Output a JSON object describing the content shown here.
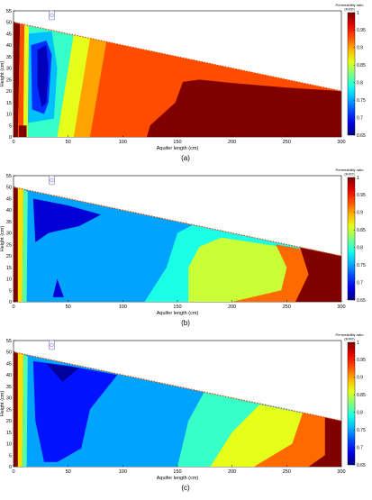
{
  "chart_data": [
    {
      "type": "heatmap",
      "panel_label": "(a)",
      "xlabel": "Aquifer length (cm)",
      "ylabel": "Height (cm)",
      "xlim": [
        0,
        300
      ],
      "ylim": [
        0,
        55
      ],
      "xticks": [
        "0",
        "50",
        "100",
        "150",
        "200",
        "250",
        "300"
      ],
      "yticks": [
        "0",
        "5",
        "10",
        "15",
        "20",
        "25",
        "30",
        "35",
        "40",
        "45",
        "50",
        "55"
      ],
      "colorbar": {
        "title_line1": "Permeability ratio",
        "title_line2": "(K/K0)",
        "min": 0.65,
        "max": 1,
        "ticks": [
          "1",
          "0.95",
          "0.9",
          "0.85",
          "0.8",
          "0.75",
          "0.7",
          "0.65"
        ]
      },
      "domain_top": [
        [
          0,
          50
        ],
        [
          300,
          20
        ]
      ],
      "regions": [
        {
          "value": 0.8,
          "points": [
            [
              0,
              0
            ],
            [
              300,
              0
            ],
            [
              300,
              20
            ],
            [
              0,
              50
            ]
          ]
        },
        {
          "value": 0.86,
          "points": [
            [
              40,
              0
            ],
            [
              300,
              0
            ],
            [
              300,
              20
            ],
            [
              55,
              44.5
            ]
          ]
        },
        {
          "value": 0.9,
          "points": [
            [
              55,
              0
            ],
            [
              300,
              0
            ],
            [
              300,
              20
            ],
            [
              70,
              43
            ]
          ]
        },
        {
          "value": 0.93,
          "points": [
            [
              70,
              0
            ],
            [
              300,
              0
            ],
            [
              300,
              20
            ],
            [
              85,
              41.5
            ]
          ]
        },
        {
          "value": 1.0,
          "points": [
            [
              122,
              0
            ],
            [
              300,
              0
            ],
            [
              300,
              20
            ],
            [
              250,
              21.5
            ],
            [
              200,
              23.5
            ],
            [
              170,
              25
            ],
            [
              155,
              24
            ],
            [
              148,
              15
            ],
            [
              125,
              5
            ]
          ]
        },
        {
          "value": 0.76,
          "points": [
            [
              12,
              45
            ],
            [
              35,
              46
            ],
            [
              40,
              30
            ],
            [
              37,
              8
            ],
            [
              12,
              6
            ]
          ]
        },
        {
          "value": 0.71,
          "points": [
            [
              16,
              40
            ],
            [
              30,
              42
            ],
            [
              35,
              36
            ],
            [
              32,
              15
            ],
            [
              28,
              10
            ],
            [
              17,
              12
            ]
          ]
        },
        {
          "value": 0.67,
          "points": [
            [
              22,
              38
            ],
            [
              30,
              40
            ],
            [
              32,
              30
            ],
            [
              30,
              15
            ],
            [
              26,
              13
            ],
            [
              22,
              22
            ]
          ]
        },
        {
          "value": 1.0,
          "points": [
            [
              0,
              0
            ],
            [
              4,
              0
            ],
            [
              6,
              50
            ],
            [
              0,
              50
            ]
          ]
        },
        {
          "value": 0.93,
          "points": [
            [
              4,
              0
            ],
            [
              9,
              0
            ],
            [
              10,
              49
            ],
            [
              6,
              50
            ]
          ]
        },
        {
          "value": 0.86,
          "points": [
            [
              9,
              0
            ],
            [
              13,
              0
            ],
            [
              14,
              48
            ],
            [
              10,
              49
            ]
          ]
        },
        {
          "value": 1.0,
          "points": [
            [
              5,
              5
            ],
            [
              12,
              5
            ],
            [
              12,
              0
            ],
            [
              5,
              0
            ]
          ]
        }
      ]
    },
    {
      "type": "heatmap",
      "panel_label": "(b)",
      "xlabel": "Aquifer length (cm)",
      "ylabel": "Height (cm)",
      "xlim": [
        0,
        300
      ],
      "ylim": [
        0,
        55
      ],
      "xticks": [
        "0",
        "50",
        "100",
        "150",
        "200",
        "250",
        "300"
      ],
      "yticks": [
        "0",
        "5",
        "10",
        "15",
        "20",
        "25",
        "30",
        "35",
        "40",
        "45",
        "50",
        "55"
      ],
      "colorbar": {
        "title_line1": "Permeability ratio",
        "title_line2": "(K/K0)",
        "min": 0.65,
        "max": 1,
        "ticks": [
          "1",
          "0.95",
          "0.9",
          "0.85",
          "0.8",
          "0.75",
          "0.7",
          "0.65"
        ]
      },
      "domain_top": [
        [
          0,
          50
        ],
        [
          300,
          20
        ]
      ],
      "regions": [
        {
          "value": 0.75,
          "points": [
            [
              0,
              0
            ],
            [
              300,
              0
            ],
            [
              300,
              20
            ],
            [
              0,
              50
            ]
          ]
        },
        {
          "value": 0.79,
          "points": [
            [
              120,
              0
            ],
            [
              300,
              0
            ],
            [
              300,
              20
            ],
            [
              170,
              35
            ],
            [
              150,
              30
            ],
            [
              140,
              15
            ]
          ]
        },
        {
          "value": 0.85,
          "points": [
            [
              160,
              0
            ],
            [
              300,
              0
            ],
            [
              300,
              20
            ],
            [
              190,
              28
            ],
            [
              170,
              24
            ],
            [
              160,
              15
            ]
          ]
        },
        {
          "value": 0.92,
          "points": [
            [
              200,
              0
            ],
            [
              300,
              0
            ],
            [
              300,
              20
            ],
            [
              240,
              25
            ],
            [
              250,
              15
            ],
            [
              245,
              5
            ]
          ]
        },
        {
          "value": 1.0,
          "points": [
            [
              258,
              0
            ],
            [
              300,
              0
            ],
            [
              300,
              20
            ],
            [
              262,
              24
            ],
            [
              270,
              12
            ]
          ]
        },
        {
          "value": 0.68,
          "points": [
            [
              18,
              45
            ],
            [
              50,
              42
            ],
            [
              80,
              38
            ],
            [
              60,
              33
            ],
            [
              32,
              30
            ],
            [
              20,
              26
            ]
          ]
        },
        {
          "value": 0.68,
          "points": [
            [
              36,
              2
            ],
            [
              46,
              2
            ],
            [
              40,
              10
            ]
          ]
        },
        {
          "value": 1.0,
          "points": [
            [
              0,
              0
            ],
            [
              4,
              0
            ],
            [
              4,
              50
            ],
            [
              0,
              50
            ]
          ]
        },
        {
          "value": 0.88,
          "points": [
            [
              4,
              0
            ],
            [
              8,
              0
            ],
            [
              9,
              49
            ],
            [
              4,
              50
            ]
          ]
        },
        {
          "value": 0.81,
          "points": [
            [
              8,
              0
            ],
            [
              12,
              0
            ],
            [
              13,
              48
            ],
            [
              9,
              49
            ]
          ]
        }
      ]
    },
    {
      "type": "heatmap",
      "panel_label": "(c)",
      "xlabel": "Aquifer length (cm)",
      "ylabel": "Height (cm)",
      "xlim": [
        0,
        300
      ],
      "ylim": [
        0,
        55
      ],
      "xticks": [
        "0",
        "50",
        "100",
        "150",
        "200",
        "250",
        "300"
      ],
      "yticks": [
        "0",
        "5",
        "10",
        "15",
        "20",
        "25",
        "30",
        "35",
        "40",
        "45",
        "50",
        "55"
      ],
      "colorbar": {
        "title_line1": "Permeability ratio",
        "title_line2": "(K/K0)",
        "min": 0.65,
        "max": 1,
        "ticks": [
          "1",
          "0.95",
          "0.9",
          "0.85",
          "0.8",
          "0.75",
          "0.7",
          "0.65"
        ]
      },
      "domain_top": [
        [
          0,
          50
        ],
        [
          300,
          20
        ]
      ],
      "regions": [
        {
          "value": 0.75,
          "points": [
            [
              0,
              0
            ],
            [
              300,
              0
            ],
            [
              300,
              20
            ],
            [
              0,
              50
            ]
          ]
        },
        {
          "value": 0.8,
          "points": [
            [
              150,
              0
            ],
            [
              300,
              0
            ],
            [
              300,
              20
            ],
            [
              175,
              33
            ],
            [
              160,
              20
            ]
          ]
        },
        {
          "value": 0.86,
          "points": [
            [
              180,
              0
            ],
            [
              300,
              0
            ],
            [
              300,
              20
            ],
            [
              225,
              27
            ],
            [
              200,
              15
            ]
          ]
        },
        {
          "value": 0.92,
          "points": [
            [
              220,
              0
            ],
            [
              300,
              0
            ],
            [
              300,
              20
            ],
            [
              265,
              24
            ],
            [
              255,
              10
            ]
          ]
        },
        {
          "value": 1.0,
          "points": [
            [
              270,
              0
            ],
            [
              300,
              0
            ],
            [
              300,
              20
            ],
            [
              285,
              22
            ],
            [
              285,
              5
            ]
          ]
        },
        {
          "value": 0.7,
          "points": [
            [
              18,
              46
            ],
            [
              50,
              44
            ],
            [
              95,
              40
            ],
            [
              70,
              25
            ],
            [
              62,
              8
            ],
            [
              40,
              2
            ],
            [
              28,
              2
            ],
            [
              20,
              20
            ]
          ]
        },
        {
          "value": 0.66,
          "points": [
            [
              30,
              45
            ],
            [
              60,
              43
            ],
            [
              45,
              37
            ]
          ]
        },
        {
          "value": 1.0,
          "points": [
            [
              0,
              0
            ],
            [
              4,
              0
            ],
            [
              4,
              50
            ],
            [
              0,
              50
            ]
          ]
        },
        {
          "value": 0.88,
          "points": [
            [
              4,
              0
            ],
            [
              8,
              0
            ],
            [
              9,
              49
            ],
            [
              4,
              50
            ]
          ]
        },
        {
          "value": 0.81,
          "points": [
            [
              8,
              0
            ],
            [
              12,
              0
            ],
            [
              13,
              48
            ],
            [
              9,
              49
            ]
          ]
        }
      ]
    }
  ]
}
